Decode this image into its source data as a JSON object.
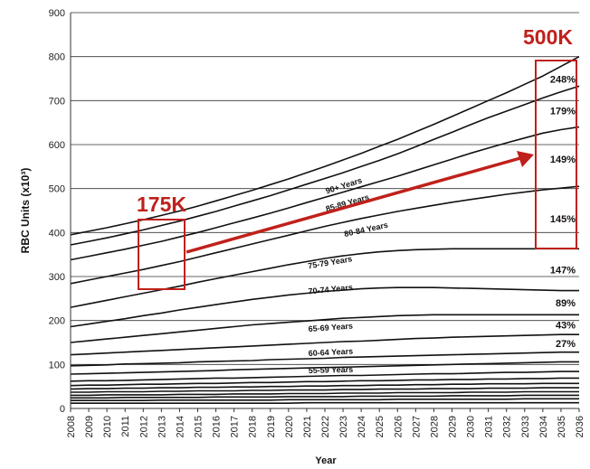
{
  "chart_data": {
    "type": "area",
    "ylabel": "RBC Units (x10³)",
    "xlabel": "Year",
    "ylim": [
      0,
      900
    ],
    "yticks": [
      0,
      100,
      200,
      300,
      400,
      500,
      600,
      700,
      800,
      900
    ],
    "grid": "horizontal",
    "x": [
      "2008",
      "2009",
      "2010",
      "2011",
      "2012",
      "2013",
      "2014",
      "2015",
      "2016",
      "2017",
      "2018",
      "2019",
      "2020",
      "2021",
      "2022",
      "2023",
      "2024",
      "2025",
      "2026",
      "2027",
      "2028",
      "2029",
      "2030",
      "2031",
      "2032",
      "2033",
      "2034",
      "2035",
      "2036"
    ],
    "series": [
      {
        "name": "",
        "values": [
          12,
          12,
          12,
          12,
          12,
          12,
          12,
          12,
          12,
          12,
          12,
          12,
          12,
          13,
          13,
          13,
          13,
          13,
          13,
          13,
          13,
          13,
          13,
          13,
          13,
          13,
          13,
          13,
          13
        ]
      },
      {
        "name": "",
        "values": [
          18,
          18,
          18,
          18,
          18,
          19,
          19,
          19,
          19,
          19,
          19,
          19,
          20,
          20,
          20,
          20,
          20,
          20,
          21,
          21,
          21,
          21,
          21,
          21,
          21,
          22,
          22,
          22,
          22
        ]
      },
      {
        "name": "",
        "values": [
          24,
          24,
          24,
          25,
          25,
          25,
          25,
          25,
          26,
          26,
          26,
          26,
          27,
          27,
          27,
          27,
          28,
          28,
          28,
          28,
          28,
          29,
          29,
          29,
          29,
          30,
          30,
          30,
          30
        ]
      },
      {
        "name": "",
        "values": [
          30,
          30,
          31,
          31,
          31,
          31,
          32,
          32,
          32,
          33,
          33,
          33,
          34,
          34,
          34,
          35,
          35,
          35,
          36,
          36,
          36,
          36,
          37,
          37,
          37,
          38,
          38,
          38,
          38
        ]
      },
      {
        "name": "",
        "values": [
          37,
          37,
          38,
          38,
          38,
          39,
          39,
          40,
          40,
          40,
          41,
          41,
          42,
          42,
          42,
          43,
          43,
          44,
          44,
          44,
          45,
          45,
          45,
          46,
          46,
          46,
          47,
          47,
          47
        ]
      },
      {
        "name": "",
        "values": [
          44,
          45,
          45,
          46,
          46,
          47,
          47,
          48,
          48,
          49,
          49,
          50,
          50,
          51,
          51,
          52,
          52,
          53,
          53,
          54,
          54,
          55,
          55,
          56,
          56,
          56,
          57,
          57,
          57
        ]
      },
      {
        "name": "",
        "values": [
          52,
          53,
          53,
          54,
          55,
          55,
          56,
          57,
          57,
          58,
          59,
          59,
          60,
          61,
          61,
          62,
          63,
          63,
          64,
          65,
          65,
          66,
          66,
          67,
          67,
          68,
          68,
          69,
          69
        ]
      },
      {
        "name": "",
        "values": [
          62,
          63,
          63,
          64,
          65,
          66,
          67,
          68,
          69,
          69,
          70,
          71,
          72,
          73,
          74,
          75,
          75,
          76,
          77,
          78,
          79,
          79,
          80,
          81,
          82,
          82,
          83,
          84,
          84
        ]
      },
      {
        "name": "",
        "values": [
          78,
          79,
          80,
          81,
          82,
          83,
          84,
          85,
          86,
          88,
          89,
          90,
          91,
          92,
          93,
          94,
          95,
          96,
          97,
          98,
          99,
          100,
          101,
          102,
          103,
          104,
          105,
          106,
          106
        ]
      },
      {
        "name": "55-59 Years",
        "values": [
          97,
          98,
          99,
          101,
          102,
          103,
          104,
          106,
          107,
          108,
          109,
          111,
          112,
          113,
          114,
          116,
          117,
          118,
          119,
          120,
          121,
          122,
          123,
          124,
          125,
          126,
          127,
          128,
          128
        ]
      },
      {
        "name": "60-64 Years",
        "values": [
          122,
          124,
          126,
          128,
          130,
          132,
          134,
          136,
          138,
          140,
          142,
          144,
          146,
          148,
          150,
          152,
          153,
          155,
          157,
          159,
          160,
          162,
          163,
          164,
          165,
          166,
          167,
          168,
          168
        ]
      },
      {
        "name": "65-69 Years",
        "values": [
          150,
          154,
          158,
          162,
          166,
          170,
          174,
          178,
          182,
          186,
          190,
          193,
          196,
          199,
          202,
          205,
          207,
          209,
          211,
          212,
          213,
          213,
          213,
          213,
          213,
          213,
          213,
          213,
          213
        ]
      },
      {
        "name": "70-74 Years",
        "values": [
          186,
          192,
          198,
          204,
          211,
          217,
          224,
          230,
          236,
          242,
          248,
          253,
          258,
          262,
          266,
          269,
          272,
          274,
          275,
          275,
          275,
          274,
          273,
          272,
          271,
          270,
          269,
          268,
          268
        ]
      },
      {
        "name": "75-79 Years",
        "values": [
          230,
          238,
          246,
          254,
          262,
          270,
          278,
          287,
          295,
          303,
          311,
          319,
          327,
          334,
          341,
          347,
          352,
          356,
          359,
          361,
          362,
          363,
          363,
          363,
          363,
          363,
          363,
          363,
          363
        ]
      },
      {
        "name": "80-84 Years",
        "values": [
          284,
          292,
          300,
          308,
          316,
          325,
          334,
          344,
          354,
          364,
          374,
          384,
          394,
          404,
          414,
          423,
          432,
          440,
          448,
          455,
          462,
          469,
          475,
          481,
          487,
          492,
          497,
          501,
          505
        ]
      },
      {
        "name": "85-89 Years",
        "values": [
          338,
          346,
          354,
          362,
          371,
          380,
          390,
          400,
          411,
          422,
          433,
          444,
          456,
          468,
          480,
          492,
          504,
          516,
          528,
          541,
          554,
          567,
          580,
          592,
          604,
          615,
          626,
          634,
          640
        ]
      },
      {
        "name": "90+ Years",
        "values": [
          372,
          380,
          388,
          397,
          406,
          416,
          426,
          437,
          448,
          460,
          472,
          484,
          497,
          510,
          523,
          536,
          550,
          564,
          579,
          595,
          612,
          628,
          645,
          661,
          676,
          691,
          706,
          720,
          733
        ]
      },
      {
        "name": "",
        "values": [
          395,
          403,
          411,
          420,
          429,
          439,
          449,
          460,
          472,
          484,
          496,
          509,
          522,
          536,
          550,
          565,
          580,
          596,
          612,
          629,
          646,
          664,
          682,
          700,
          718,
          737,
          756,
          778,
          800
        ]
      }
    ],
    "band_labels": [
      "90+ Years",
      "85-89 Years",
      "80-84 Years",
      "75-79 Years",
      "70-74 Years",
      "65-69 Years",
      "60-64 Years",
      "55-59 Years"
    ],
    "growth_labels": [
      "248%",
      "179%",
      "149%",
      "145%",
      "147%",
      "89%",
      "43%",
      "27%"
    ],
    "annotations": {
      "left_callout": "175K",
      "right_callout": "500K"
    },
    "colors": {
      "line": "#111111",
      "callout": "#c0201b",
      "grid": "#333333"
    }
  }
}
